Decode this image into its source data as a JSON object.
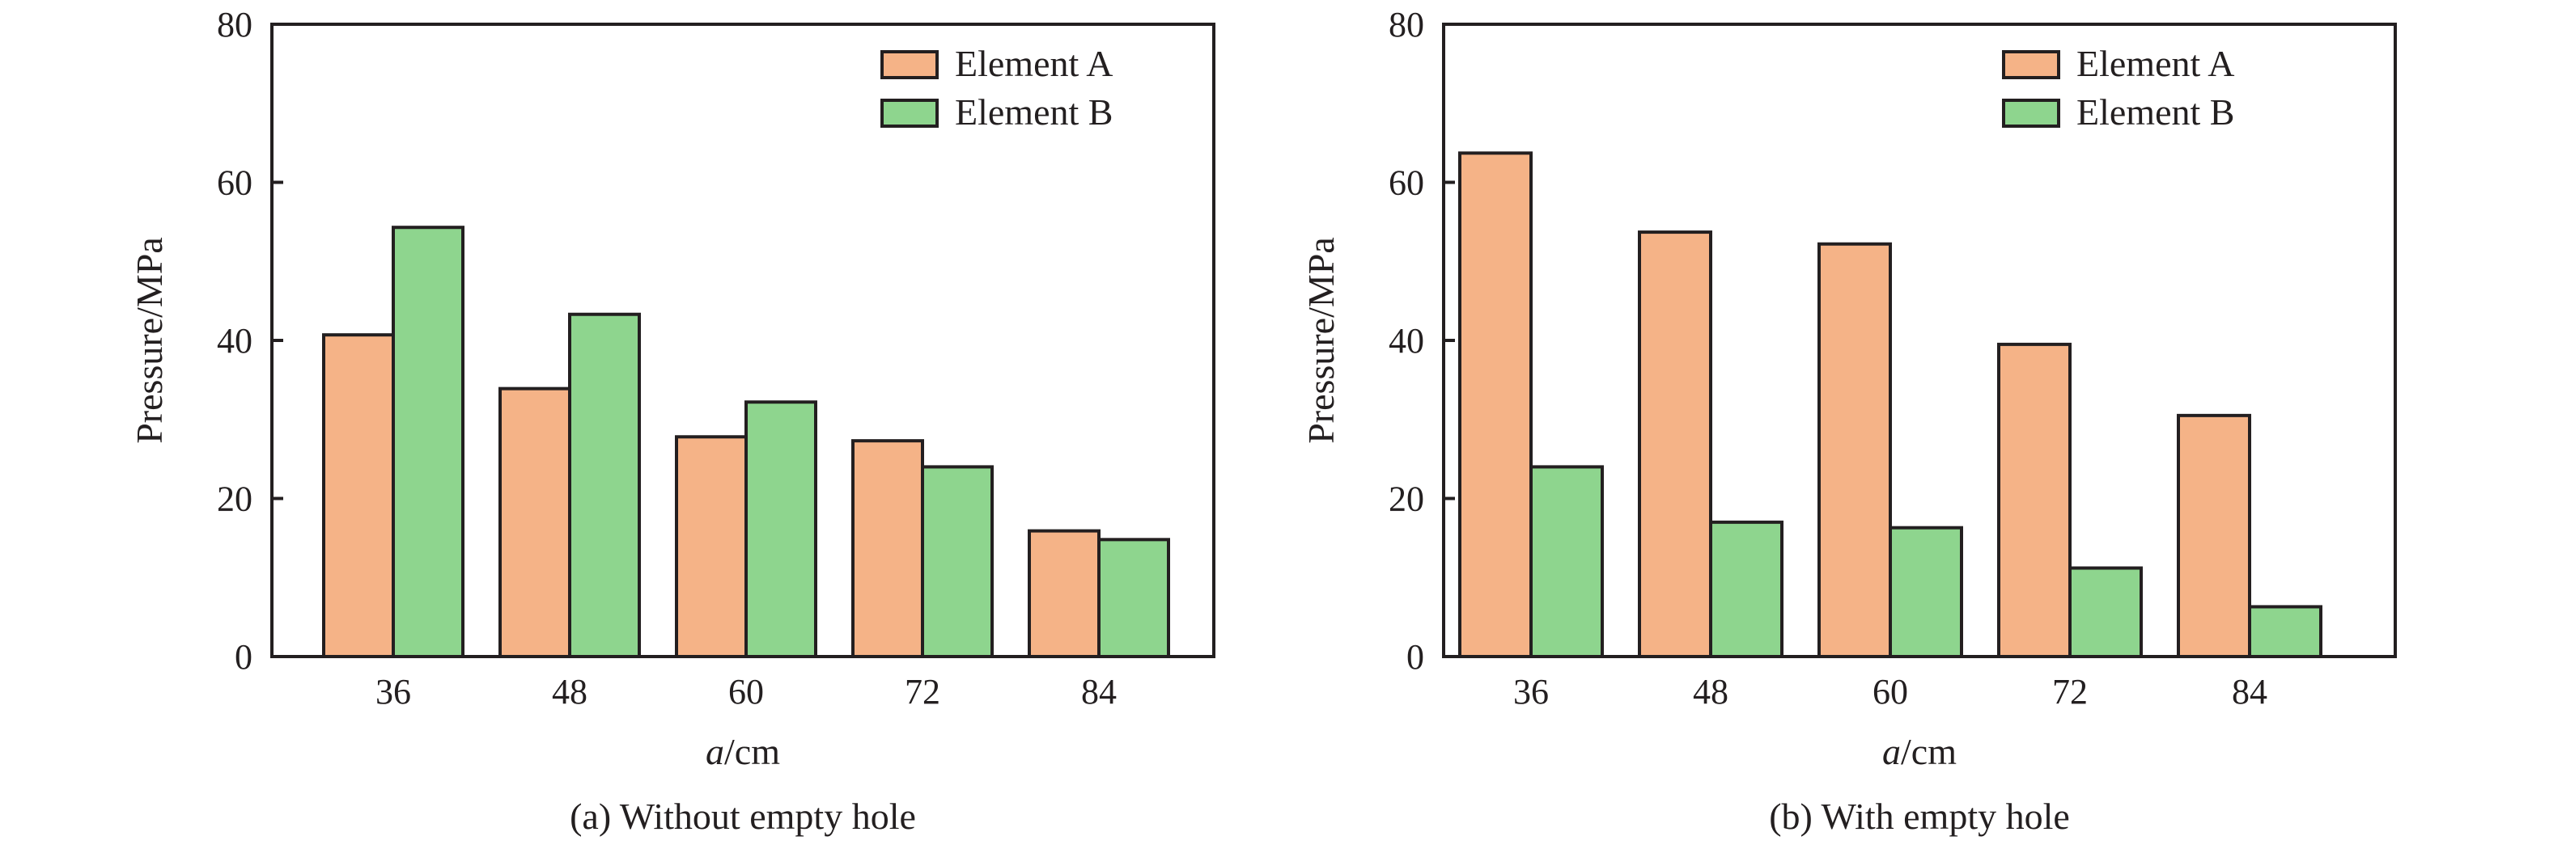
{
  "chart_data": [
    {
      "type": "bar",
      "caption": "(a) Without empty hole",
      "xlabel_italic": "a",
      "xlabel_unit": "/cm",
      "ylabel": "Pressure/MPa",
      "categories": [
        "36",
        "48",
        "60",
        "72",
        "84"
      ],
      "ylim": [
        0,
        80
      ],
      "yticks": [
        "0",
        "20",
        "40",
        "60",
        "80"
      ],
      "legend_position": "top-right",
      "grid": false,
      "series": [
        {
          "name": "Element A",
          "color": "#f5b387",
          "values": [
            40.7,
            33.9,
            27.8,
            27.3,
            15.9
          ]
        },
        {
          "name": "Element B",
          "color": "#8ed58e",
          "values": [
            54.3,
            43.3,
            32.2,
            24.0,
            14.8
          ]
        }
      ]
    },
    {
      "type": "bar",
      "caption": "(b) With empty hole",
      "xlabel_italic": "a",
      "xlabel_unit": "/cm",
      "ylabel": "Pressure/MPa",
      "categories": [
        "36",
        "48",
        "60",
        "72",
        "84"
      ],
      "ylim": [
        0,
        80
      ],
      "yticks": [
        "0",
        "20",
        "40",
        "60",
        "80"
      ],
      "legend_position": "top-right",
      "grid": false,
      "series": [
        {
          "name": "Element A",
          "color": "#f5b387",
          "values": [
            63.7,
            53.7,
            52.2,
            39.5,
            30.5
          ]
        },
        {
          "name": "Element B",
          "color": "#8ed58e",
          "values": [
            24.0,
            17.0,
            16.3,
            11.2,
            6.3
          ]
        }
      ]
    }
  ]
}
